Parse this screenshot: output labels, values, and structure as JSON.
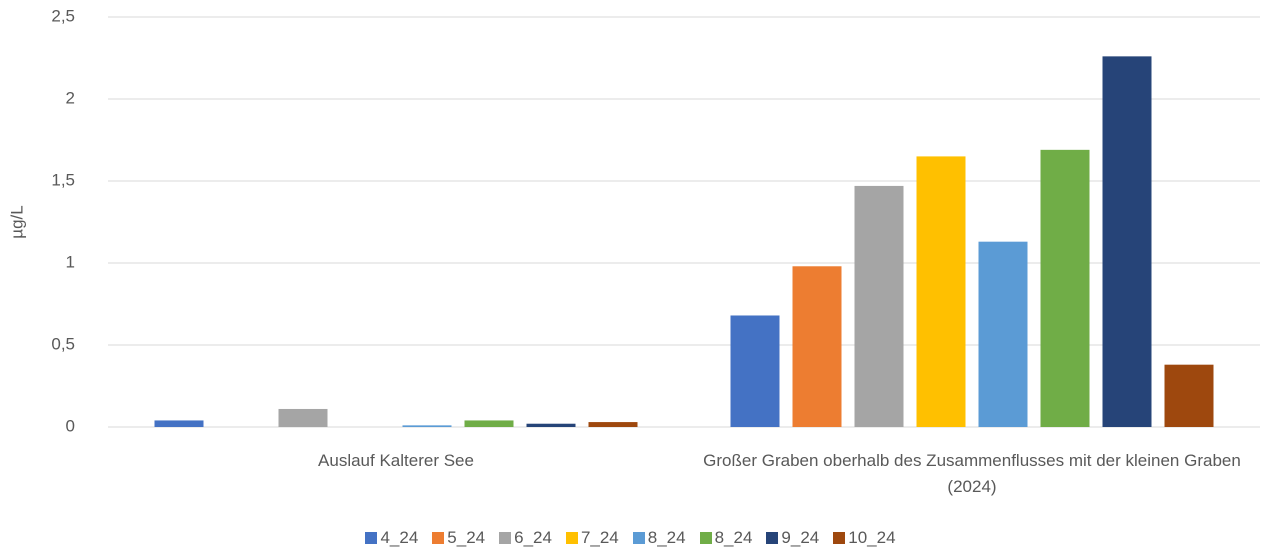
{
  "chart_data": {
    "type": "bar",
    "y_label": "µg/L",
    "categories": [
      "Auslauf Kalterer See",
      "Großer Graben oberhalb des Zusammenflusses mit der kleinen Graben (2024)"
    ],
    "series": [
      {
        "name": "4_24",
        "color": "#4472c4",
        "values": [
          0.04,
          0.68
        ]
      },
      {
        "name": "5_24",
        "color": "#ed7d31",
        "values": [
          null,
          0.98
        ]
      },
      {
        "name": "6_24",
        "color": "#a5a5a5",
        "values": [
          0.11,
          1.47
        ]
      },
      {
        "name": "7_24",
        "color": "#ffc000",
        "values": [
          null,
          1.65
        ]
      },
      {
        "name": "8_24",
        "color": "#5b9bd5",
        "values": [
          0.01,
          1.13
        ]
      },
      {
        "name": "8_24",
        "color": "#70ad47",
        "values": [
          0.04,
          1.69
        ]
      },
      {
        "name": "9_24",
        "color": "#264478",
        "values": [
          0.02,
          2.26
        ]
      },
      {
        "name": "10_24",
        "color": "#9e480e",
        "values": [
          0.03,
          0.38
        ]
      }
    ],
    "ylim": [
      0,
      2.5
    ],
    "yticks": [
      0,
      {
        "value": 0.5,
        "label": "0,5"
      },
      1,
      {
        "value": 1.5,
        "label": "1,5"
      },
      2,
      {
        "value": 2.5,
        "label": "2,5"
      }
    ],
    "grid": true,
    "legend": "bottom"
  }
}
